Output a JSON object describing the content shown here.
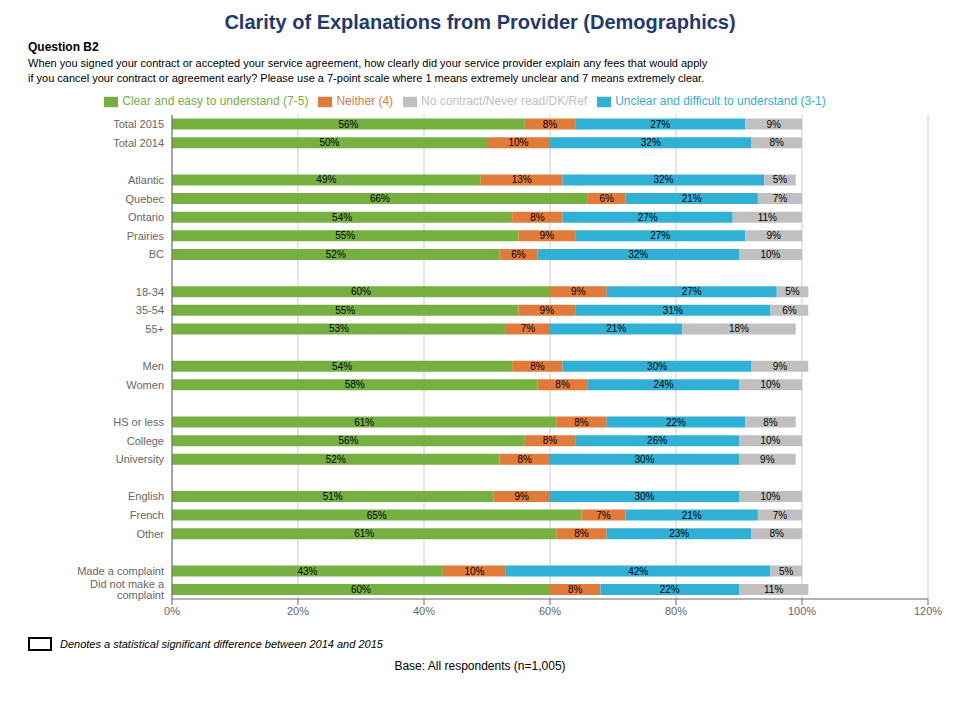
{
  "chart_data": {
    "type": "bar",
    "orientation": "horizontal",
    "stacked": true,
    "data_labels": true,
    "grid": true,
    "legend": "top",
    "title": "Clarity of Explanations from Provider (Demographics)",
    "annotations": [
      "Question B2",
      "When you signed your contract or accepted your service agreement, how clearly did your service provider explain any fees that would apply\nif you cancel your contract or agreement early? Please use a 7-point scale where 1 means extremely unclear and 7 means extremely clear.",
      "Denotes a statistical significant difference between 2014 and 2015",
      "Base: All respondents (n=1,005)"
    ],
    "categories": [
      "Total 2015",
      "Total 2014",
      null,
      "Atlantic",
      "Quebec",
      "Ontario",
      "Prairies",
      "BC",
      null,
      "18-34",
      "35-54",
      "55+",
      null,
      "Men",
      "Women",
      null,
      "HS or less",
      "College",
      "University",
      null,
      "English",
      "French",
      "Other",
      null,
      "Made a complaint",
      "Did not make a complaint"
    ],
    "series": [
      {
        "name": "Clear and easy to understand (7-5)",
        "color": "#76b041",
        "values": [
          56,
          50,
          null,
          49,
          66,
          54,
          55,
          52,
          null,
          60,
          55,
          53,
          null,
          54,
          58,
          null,
          61,
          56,
          52,
          null,
          51,
          65,
          61,
          null,
          43,
          60
        ],
        "value_labels": [
          "56%",
          "50%",
          null,
          "49%",
          "66%",
          "54%",
          "55%",
          "52%",
          null,
          "60%",
          "55%",
          "53%",
          null,
          "54%",
          "58%",
          null,
          "61%",
          "56%",
          "52%",
          null,
          "51%",
          "65%",
          "61%",
          null,
          "43%",
          "60%"
        ]
      },
      {
        "name": "Neither (4)",
        "color": "#e07b39",
        "values": [
          8,
          10,
          null,
          13,
          6,
          8,
          9,
          6,
          null,
          9,
          9,
          7,
          null,
          8,
          8,
          null,
          8,
          8,
          8,
          null,
          9,
          7,
          8,
          null,
          10,
          8
        ],
        "value_labels": [
          "8%",
          "10%",
          null,
          "13%",
          "6%",
          "8%",
          "9%",
          "6%",
          null,
          "9%",
          "9%",
          "7%",
          null,
          "8%",
          "8%",
          null,
          "8%",
          "8%",
          "8%",
          null,
          "9%",
          "7%",
          "8%",
          null,
          "10%",
          "8%"
        ]
      },
      {
        "name": "Unclear and difficult to understand (3-1)",
        "color": "#31b0d5",
        "values": [
          27,
          32,
          null,
          32,
          21,
          27,
          27,
          32,
          null,
          27,
          31,
          21,
          null,
          30,
          24,
          null,
          22,
          26,
          30,
          null,
          30,
          21,
          23,
          null,
          42,
          22
        ],
        "value_labels": [
          "27%",
          "32%",
          null,
          "32%",
          "21%",
          "27%",
          "27%",
          "32%",
          null,
          "27%",
          "31%",
          "21%",
          null,
          "30%",
          "24%",
          null,
          "22%",
          "26%",
          "30%",
          null,
          "30%",
          "21%",
          "23%",
          null,
          "42%",
          "22%"
        ]
      },
      {
        "name": "No contract/Never read/DK/Ref",
        "color": "#c0c0c0",
        "values": [
          9,
          8,
          null,
          5,
          7,
          11,
          9,
          10,
          null,
          5,
          6,
          18,
          null,
          9,
          10,
          null,
          8,
          10,
          9,
          null,
          10,
          7,
          8,
          null,
          5,
          11
        ],
        "value_labels": [
          "9%",
          "8%",
          null,
          "5%",
          "7%",
          "11%",
          "9%",
          "10%",
          null,
          "5%",
          "6%",
          "18%",
          null,
          "9%",
          "10%",
          null,
          "8%",
          "10%",
          "9%",
          null,
          "10%",
          "7%",
          "8%",
          null,
          "5%",
          "11%"
        ]
      }
    ],
    "xlim": [
      0,
      120
    ],
    "xticks": [
      {
        "value": 0,
        "label": "0%"
      },
      {
        "value": 20,
        "label": "20%"
      },
      {
        "value": 40,
        "label": "40%"
      },
      {
        "value": 60,
        "label": "60%"
      },
      {
        "value": 80,
        "label": "80%"
      },
      {
        "value": 100,
        "label": "100%"
      },
      {
        "value": 120,
        "label": "120%"
      }
    ]
  }
}
